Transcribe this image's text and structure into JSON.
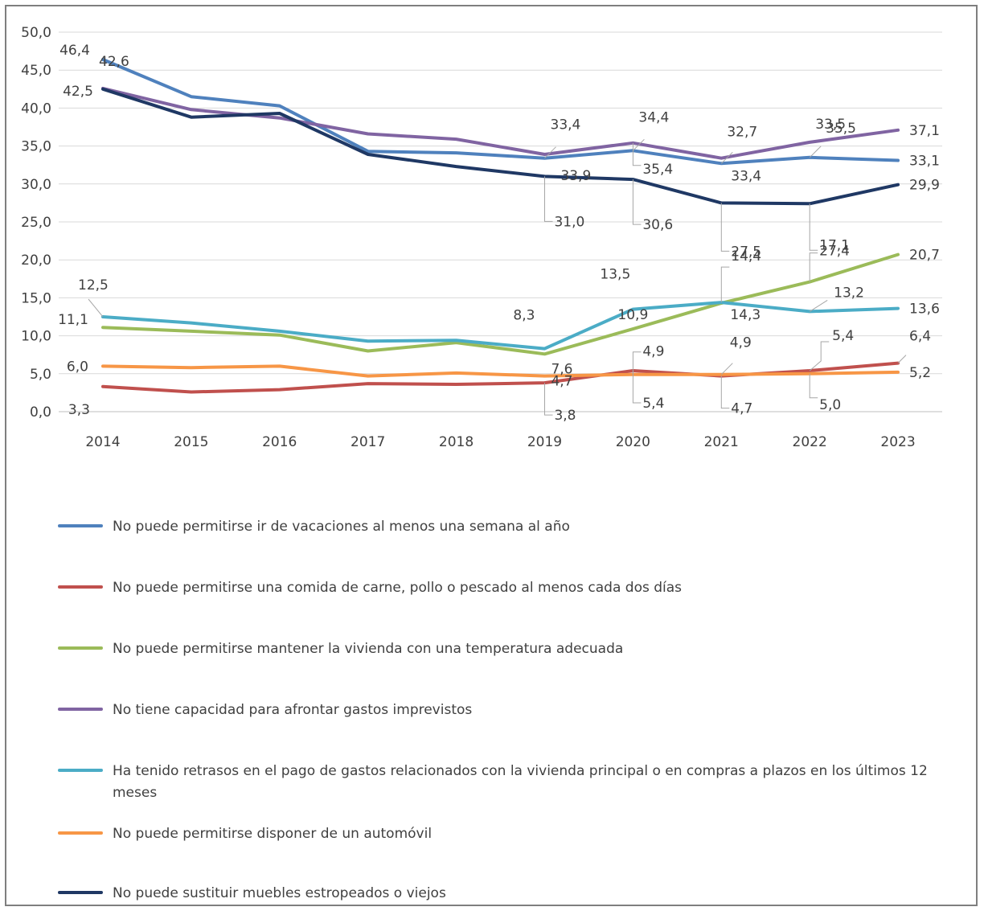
{
  "chart_data": {
    "type": "line",
    "title": "",
    "xlabel": "",
    "ylabel": "",
    "ylim": [
      0,
      50
    ],
    "yticks": [
      "0,0",
      "5,0",
      "10,0",
      "15,0",
      "20,0",
      "25,0",
      "30,0",
      "35,0",
      "40,0",
      "45,0",
      "50,0"
    ],
    "categories": [
      "2014",
      "2015",
      "2016",
      "2017",
      "2018",
      "2019",
      "2020",
      "2021",
      "2022",
      "2023"
    ],
    "grid": "horizontal",
    "legend_position": "bottom",
    "series": [
      {
        "name": "No puede permitirse ir de vacaciones al menos una semana al año",
        "color": "#4f81bd",
        "values": [
          46.4,
          41.5,
          40.3,
          34.3,
          34.1,
          33.4,
          34.4,
          32.7,
          33.5,
          33.1
        ],
        "labels": [
          "46,4",
          "",
          "",
          "",
          "",
          "33,4",
          "34,4",
          "32,7",
          "33,5",
          "33,1"
        ]
      },
      {
        "name": "No puede permitirse una comida de carne, pollo o pescado al menos cada dos días",
        "color": "#c0504d",
        "values": [
          3.3,
          2.6,
          2.9,
          3.7,
          3.6,
          3.8,
          5.4,
          4.7,
          5.4,
          6.4
        ],
        "labels": [
          "3,3",
          "",
          "",
          "",
          "",
          "3,8",
          "5,4",
          "4,7",
          "5,4",
          "6,4"
        ]
      },
      {
        "name": "No puede permitirse mantener la vivienda con una temperatura adecuada",
        "color": "#9bbb59",
        "values": [
          11.1,
          10.6,
          10.1,
          8.0,
          9.1,
          7.6,
          10.9,
          14.3,
          17.1,
          20.7
        ],
        "labels": [
          "11,1",
          "",
          "",
          "",
          "",
          "7,6",
          "10,9",
          "14,3",
          "17,1",
          "20,7"
        ]
      },
      {
        "name": "No tiene capacidad para afrontar gastos imprevistos",
        "color": "#8064a2",
        "values": [
          42.6,
          39.8,
          38.7,
          36.6,
          35.9,
          33.9,
          35.4,
          33.4,
          35.5,
          37.1
        ],
        "labels": [
          "42,6",
          "",
          "",
          "",
          "",
          "33,9",
          "35,4",
          "33,4",
          "35,5",
          "37,1"
        ]
      },
      {
        "name": "Ha tenido retrasos en el pago de gastos relacionados con la vivienda principal o en compras a plazos en los últimos 12 meses",
        "color": "#4bacc6",
        "values": [
          12.5,
          11.7,
          10.6,
          9.3,
          9.4,
          8.3,
          13.5,
          14.4,
          13.2,
          13.6
        ],
        "labels": [
          "12,5",
          "",
          "",
          "",
          "",
          "8,3",
          "13,5",
          "14,4",
          "13,2",
          "13,6"
        ]
      },
      {
        "name": "No puede permitirse disponer de un automóvil",
        "color": "#f79646",
        "values": [
          6.0,
          5.8,
          6.0,
          4.7,
          5.1,
          4.7,
          4.9,
          4.9,
          5.0,
          5.2
        ],
        "labels": [
          "6,0",
          "",
          "",
          "",
          "",
          "4,7",
          "4,9",
          "4,9",
          "5,0",
          "5,2"
        ]
      },
      {
        "name": "No puede sustituir muebles estropeados o viejos",
        "color": "#1f3864",
        "values": [
          42.5,
          38.8,
          39.3,
          33.9,
          32.3,
          31.0,
          30.6,
          27.5,
          27.4,
          29.9
        ],
        "labels": [
          "42,5",
          "",
          "",
          "",
          "",
          "31,0",
          "30,6",
          "27,5",
          "27,4",
          "29,9"
        ]
      }
    ]
  }
}
